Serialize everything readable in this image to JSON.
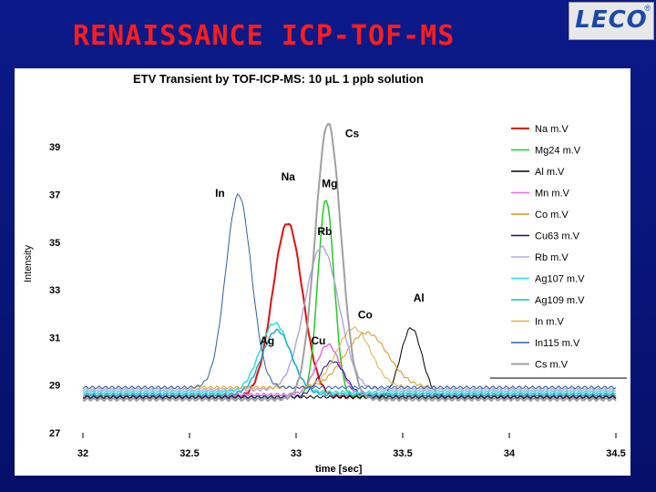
{
  "slide_title": "RENAISSANCE  ICP-TOF-MS",
  "logo": {
    "text": "LECO",
    "mark": "®"
  },
  "chart_data": {
    "type": "line",
    "title": "ETV Transient by TOF-ICP-MS: 10 μL 1 ppb solution",
    "xlabel": "time [sec]",
    "ylabel": "Intensity",
    "xlim": [
      32,
      34.5
    ],
    "ylim": [
      27,
      40
    ],
    "xticks": [
      32,
      32.5,
      33,
      33.5,
      34,
      34.5
    ],
    "yticks": [
      27,
      29,
      31,
      33,
      35,
      37,
      39
    ],
    "grid": false,
    "legend_position": "right",
    "series": [
      {
        "name": "Na m.V",
        "color": "#e01010",
        "width": 2,
        "baseline": 28.5,
        "peaks": [
          [
            32.96,
            35.8,
            0.07
          ]
        ]
      },
      {
        "name": "Mg24 m.V",
        "color": "#22cc22",
        "width": 1.5,
        "baseline": 28.5,
        "peaks": [
          [
            33.14,
            36.8,
            0.038
          ]
        ]
      },
      {
        "name": "Al m.V",
        "color": "#000000",
        "width": 1,
        "baseline": 28.5,
        "peaks": [
          [
            33.54,
            31.4,
            0.05
          ]
        ]
      },
      {
        "name": "Mn m.V",
        "color": "#e070e0",
        "width": 1.5,
        "baseline": 28.6,
        "peaks": [
          [
            33.15,
            30.7,
            0.055
          ]
        ]
      },
      {
        "name": "Co m.V",
        "color": "#d89418",
        "width": 1,
        "baseline": 28.9,
        "peaks": [
          [
            33.33,
            31.2,
            0.1
          ]
        ]
      },
      {
        "name": "Cu63 m.V",
        "color": "#101080",
        "width": 1,
        "baseline": 28.5,
        "peaks": [
          [
            33.17,
            30.0,
            0.06
          ]
        ]
      },
      {
        "name": "Rb m.V",
        "color": "#b8a8e0",
        "width": 1.5,
        "baseline": 28.8,
        "peaks": [
          [
            33.12,
            34.8,
            0.08
          ]
        ]
      },
      {
        "name": "Ag107 m.V",
        "color": "#30e0e0",
        "width": 1.5,
        "baseline": 28.7,
        "peaks": [
          [
            32.9,
            31.6,
            0.07
          ]
        ]
      },
      {
        "name": "Ag109 m.V",
        "color": "#20b0d0",
        "width": 1.5,
        "baseline": 28.6,
        "peaks": [
          [
            32.91,
            31.3,
            0.07
          ]
        ]
      },
      {
        "name": "In m.V",
        "color": "#e0b040",
        "width": 1,
        "baseline": 28.9,
        "peaks": [
          [
            33.27,
            31.4,
            0.08
          ]
        ]
      },
      {
        "name": "In115 m.V",
        "color": "#3060a0",
        "width": 1,
        "baseline": 28.9,
        "peaks": [
          [
            32.73,
            37.0,
            0.06
          ]
        ]
      },
      {
        "name": "Cs m.V",
        "color": "#a0a0a0",
        "width": 2,
        "baseline": 28.4,
        "peaks": [
          [
            33.15,
            40.0,
            0.06
          ]
        ]
      }
    ],
    "annotations": [
      {
        "text": "Cs",
        "x": 33.23,
        "y": 39.4
      },
      {
        "text": "Na",
        "x": 32.93,
        "y": 37.6
      },
      {
        "text": "Mg",
        "x": 33.12,
        "y": 37.3
      },
      {
        "text": "In",
        "x": 32.62,
        "y": 36.9
      },
      {
        "text": "Rb",
        "x": 33.1,
        "y": 35.3
      },
      {
        "text": "Al",
        "x": 33.55,
        "y": 32.5
      },
      {
        "text": "Co",
        "x": 33.29,
        "y": 31.8
      },
      {
        "text": "Ag",
        "x": 32.83,
        "y": 30.7
      },
      {
        "text": "Cu",
        "x": 33.07,
        "y": 30.7
      }
    ]
  }
}
